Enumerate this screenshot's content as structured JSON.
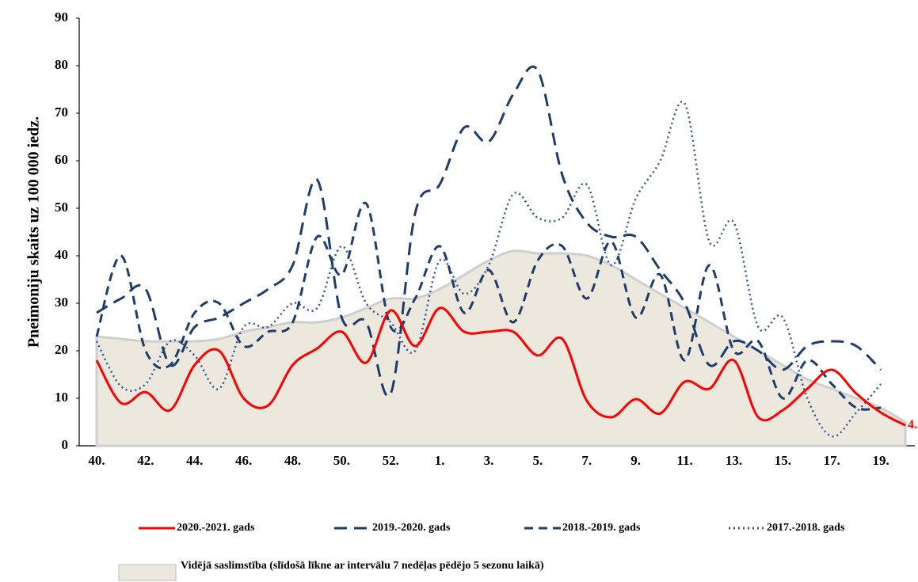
{
  "chart_data": {
    "type": "line",
    "ylabel": "Pneimoniju skaits uz 100 000 iedz.",
    "categories": [
      "40.",
      null,
      "42.",
      null,
      "44.",
      null,
      "46.",
      null,
      "48.",
      null,
      "50.",
      null,
      "52.",
      null,
      "1.",
      null,
      "3.",
      null,
      "5.",
      null,
      "7.",
      null,
      "9.",
      null,
      "11.",
      null,
      "13.",
      null,
      "15.",
      null,
      "17.",
      null,
      "19.",
      null
    ],
    "ylim": [
      0,
      90
    ],
    "yticks": [
      0,
      10,
      20,
      30,
      40,
      50,
      60,
      70,
      80,
      90
    ],
    "area": {
      "name": "Vidējā saslimstība (slīdošā līkne ar intervālu 7 nedēļas pēdējo 5 sezonu laikā)",
      "color": "#ece8de",
      "values": [
        23,
        22.5,
        22,
        22,
        22,
        22.5,
        24,
        25,
        26,
        26,
        27,
        29,
        31,
        31,
        33,
        36,
        39,
        41,
        40.5,
        40.5,
        40,
        38,
        35,
        32,
        29,
        26,
        23,
        20,
        17,
        14,
        12,
        10,
        8,
        5
      ]
    },
    "series": [
      {
        "name": "2020.-2021. gads",
        "color": "#ff0000",
        "style": "solid",
        "values": [
          18,
          9,
          11.3,
          7.5,
          17,
          20,
          10,
          8.5,
          17,
          20.5,
          24,
          17.5,
          28.5,
          21,
          29,
          24,
          24,
          24,
          19,
          22.5,
          9.5,
          6,
          9.8,
          6.8,
          13.5,
          12,
          18,
          6,
          7.5,
          12,
          16,
          11,
          7,
          4.3
        ]
      },
      {
        "name": "2019.-2020. gads",
        "color": "#1f3d6b",
        "style": "longdash",
        "values": [
          28,
          31,
          33,
          17,
          25,
          27,
          30,
          33,
          38,
          56,
          27,
          26,
          11,
          49,
          55,
          67,
          64,
          74,
          79,
          57,
          47,
          44,
          44,
          37,
          30,
          17,
          22,
          20,
          16,
          21,
          22,
          21,
          16,
          null
        ]
      },
      {
        "name": "2018.-2019. gads",
        "color": "#1f3d6b",
        "style": "dash",
        "values": [
          23,
          40,
          20,
          17,
          28,
          30,
          21,
          24,
          26,
          44,
          36,
          51,
          25,
          31,
          42,
          28,
          37,
          26,
          39,
          42,
          31,
          43,
          27,
          36,
          18,
          38,
          20,
          22,
          10,
          18,
          13,
          8,
          8,
          null
        ]
      },
      {
        "name": "2017.-2018. gads",
        "color": "#2e5597",
        "style": "dot",
        "values": [
          22,
          12.5,
          13,
          22,
          19,
          12,
          25,
          25,
          30,
          29,
          42,
          30,
          26,
          20,
          39,
          32,
          38,
          53,
          48,
          48,
          55,
          38,
          52,
          60,
          72,
          43,
          47,
          25,
          27,
          10,
          2,
          7,
          13,
          null
        ]
      }
    ]
  }
}
